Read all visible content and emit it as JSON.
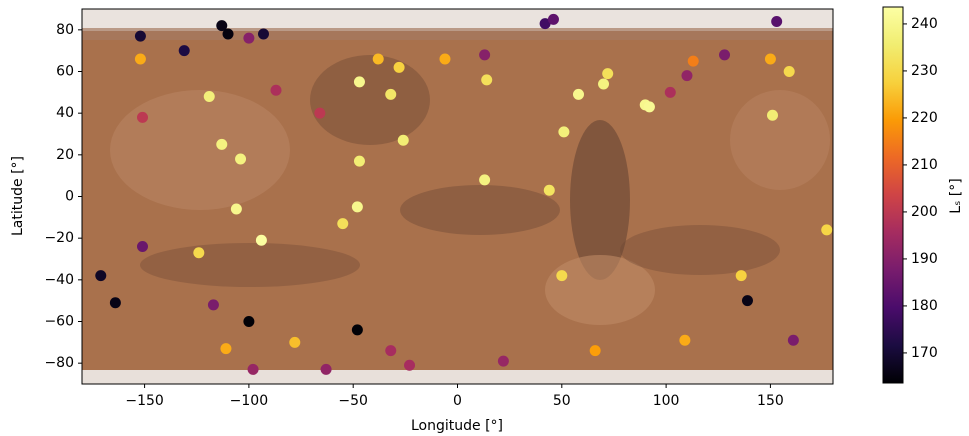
{
  "chart_data": {
    "type": "scatter",
    "xlabel": "Longitude [°]",
    "ylabel": "Latitude [°]",
    "xlim": [
      -180,
      180
    ],
    "ylim": [
      -90,
      90
    ],
    "xticks": [
      {
        "value": -150,
        "label": "−150"
      },
      {
        "value": -100,
        "label": "−100"
      },
      {
        "value": -50,
        "label": "−50"
      },
      0,
      50,
      100,
      150
    ],
    "yticks": [
      {
        "value": -80,
        "label": "−80"
      },
      {
        "value": -60,
        "label": "−60"
      },
      {
        "value": -40,
        "label": "−40"
      },
      {
        "value": -20,
        "label": "−20"
      },
      0,
      20,
      40,
      60,
      80
    ],
    "x": [
      -152,
      -152,
      -151,
      -151,
      -171,
      -164,
      -131,
      -113,
      -110,
      -93,
      -100,
      -119,
      -113,
      -104,
      -106,
      -94,
      -124,
      -117,
      -100,
      -111,
      -98,
      -87,
      -78,
      -66,
      -63,
      -47,
      -47,
      -48,
      -55,
      -48,
      -38,
      -28,
      -32,
      -26,
      -32,
      -23,
      -6,
      13,
      14,
      13,
      22,
      42,
      46,
      51,
      44,
      50,
      58,
      70,
      72,
      66,
      90,
      92,
      102,
      110,
      113,
      109,
      128,
      136,
      139,
      150,
      151,
      153,
      159,
      161,
      177
    ],
    "y": [
      77,
      66,
      38,
      -24,
      -38,
      -51,
      70,
      82,
      78,
      78,
      76,
      48,
      25,
      18,
      -6,
      -21,
      -27,
      -52,
      -60,
      -73,
      -83,
      51,
      -70,
      40,
      -83,
      55,
      17,
      -5,
      -13,
      -64,
      66,
      62,
      49,
      27,
      -74,
      -81,
      66,
      68,
      56,
      8,
      -79,
      83,
      85,
      31,
      3,
      -38,
      49,
      54,
      59,
      -74,
      44,
      43,
      50,
      58,
      65,
      -69,
      68,
      -38,
      -50,
      66,
      39,
      84,
      60,
      -69,
      -16
    ],
    "c": [
      170,
      222,
      200,
      185,
      168,
      166,
      172,
      166,
      165,
      170,
      190,
      237,
      238,
      238,
      240,
      243,
      230,
      188,
      164,
      222,
      193,
      197,
      225,
      200,
      192,
      240,
      236,
      240,
      232,
      164,
      224,
      228,
      234,
      236,
      196,
      196,
      222,
      190,
      232,
      238,
      193,
      178,
      183,
      237,
      233,
      230,
      240,
      238,
      232,
      220,
      240,
      241,
      197,
      192,
      215,
      222,
      188,
      228,
      166,
      222,
      236,
      182,
      230,
      188,
      229
    ],
    "colormap": "inferno",
    "colorbar": {
      "label": "Lₛ [°]",
      "lim": [
        163.6,
        243.6
      ],
      "ticks": [
        170,
        180,
        190,
        200,
        210,
        220,
        230,
        240
      ]
    }
  }
}
